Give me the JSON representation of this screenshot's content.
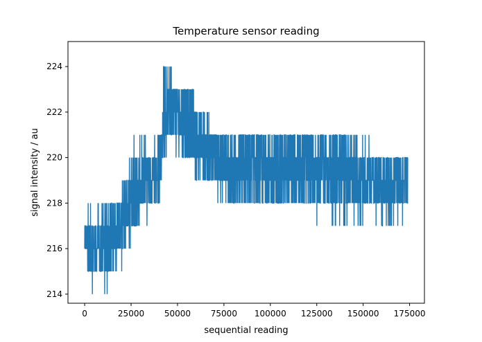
{
  "chart_data": {
    "type": "line",
    "title": "Temperature sensor reading",
    "xlabel": "sequential reading",
    "ylabel": "signal intensity / au",
    "xlim": [
      -9000,
      183000
    ],
    "ylim": [
      213.6,
      225.1
    ],
    "x_ticks": [
      0,
      25000,
      50000,
      75000,
      100000,
      125000,
      150000,
      175000
    ],
    "x_tick_labels": [
      "0",
      "25000",
      "50000",
      "75000",
      "100000",
      "125000",
      "150000",
      "175000"
    ],
    "y_ticks": [
      214,
      216,
      218,
      220,
      222,
      224
    ],
    "y_tick_labels": [
      "214",
      "216",
      "218",
      "220",
      "222",
      "224"
    ],
    "grid": false,
    "series": [
      {
        "color": "#1f77b4",
        "points": 174000,
        "envelope": {
          "x": [
            0,
            2000,
            5000,
            9000,
            12000,
            15000,
            18000,
            22000,
            25000,
            28000,
            32000,
            36000,
            40000,
            43000,
            46000,
            50000,
            53000,
            57000,
            61000,
            65000,
            70000,
            80000,
            90000,
            100000,
            110000,
            120000,
            125000,
            130000,
            140000,
            150000,
            160000,
            170000,
            174000
          ],
          "lower": [
            216,
            215,
            215,
            215,
            215,
            215,
            216,
            216,
            217,
            217,
            218,
            218,
            218,
            221,
            221,
            221,
            220,
            220,
            219,
            219,
            219,
            218,
            218,
            218,
            218,
            218,
            218,
            218,
            218,
            218,
            218,
            218,
            218
          ],
          "upper": [
            217,
            218,
            217,
            217,
            218,
            218,
            218,
            219,
            220,
            220,
            220,
            220,
            221,
            222,
            224,
            223,
            223,
            223,
            222,
            222,
            221,
            221,
            221,
            221,
            221,
            221,
            221,
            221,
            221,
            220,
            220,
            220,
            220
          ],
          "min_spike": [
            216,
            215,
            214,
            215,
            214,
            215,
            215,
            216,
            216,
            217,
            217,
            218,
            218,
            220,
            221,
            220,
            220,
            219,
            219,
            219,
            218,
            218,
            218,
            218,
            218,
            218,
            217,
            217,
            217,
            217,
            217,
            217,
            217
          ],
          "max_spike": [
            217,
            218,
            218,
            218,
            218,
            218,
            219,
            219,
            220,
            221,
            221,
            221,
            222,
            224,
            224,
            224,
            223,
            223,
            222,
            222,
            221,
            221,
            221,
            221,
            221,
            221,
            221,
            221,
            221,
            221,
            220,
            220,
            220
          ]
        }
      }
    ]
  }
}
